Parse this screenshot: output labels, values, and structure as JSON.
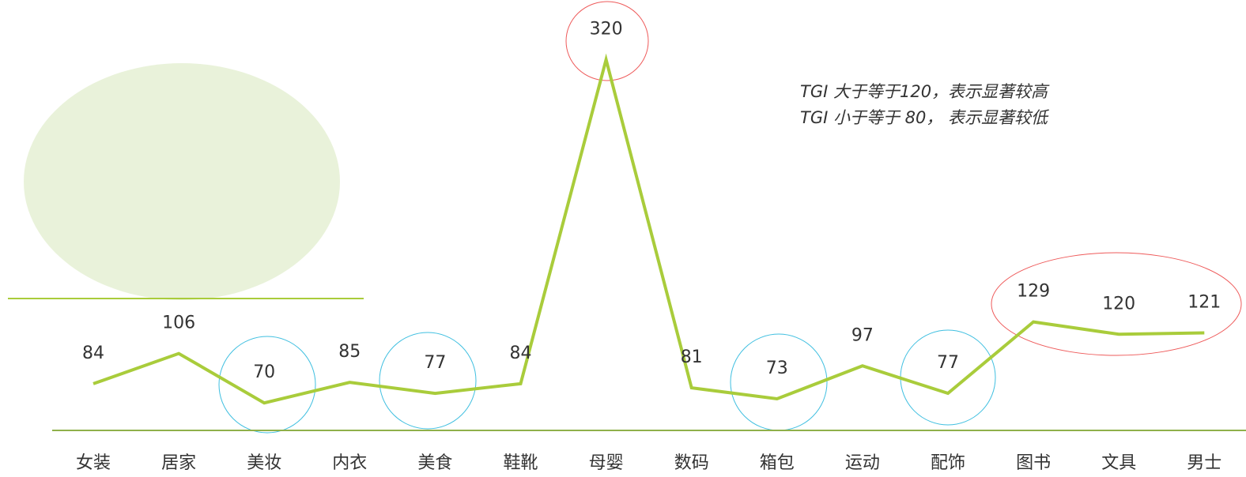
{
  "chart_data": {
    "type": "line",
    "annotations": [
      "TGI 大于等于120，表示显著较高",
      "TGI 小于等于 80， 表示显著较低"
    ],
    "categories": [
      "女装",
      "居家",
      "美妆",
      "内衣",
      "美食",
      "鞋靴",
      "母婴",
      "数码",
      "箱包",
      "运动",
      "配饰",
      "图书",
      "文具",
      "男士"
    ],
    "series": [
      {
        "color": "#a9cc3b",
        "values": [
          84,
          106,
          70,
          85,
          77,
          84,
          320,
          81,
          73,
          97,
          77,
          129,
          120,
          121
        ]
      }
    ],
    "ylim": [
      50,
      360
    ]
  }
}
